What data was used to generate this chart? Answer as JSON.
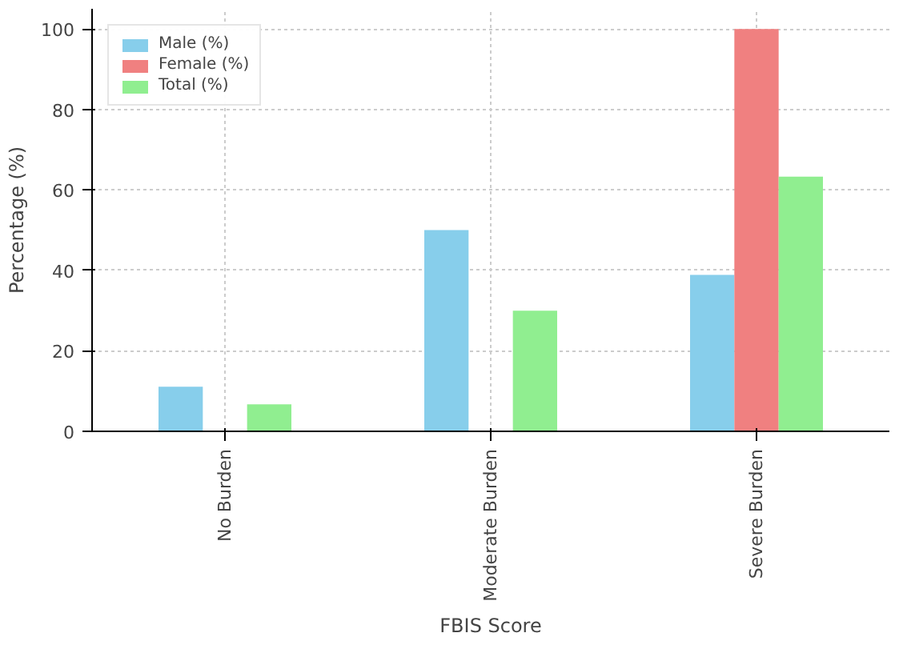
{
  "chart_data": {
    "type": "bar",
    "xlabel": "FBIS Score",
    "ylabel": "Percentage (%)",
    "categories": [
      "No Burden",
      "Moderate Burden",
      "Severe Burden"
    ],
    "series": [
      {
        "name": "Male (%)",
        "color": "#87ceeb",
        "values": [
          11.1,
          50,
          38.9
        ]
      },
      {
        "name": "Female (%)",
        "color": "#f08080",
        "values": [
          0,
          0,
          100
        ]
      },
      {
        "name": "Total (%)",
        "color": "#90ee90",
        "values": [
          6.7,
          30,
          63.3
        ]
      }
    ],
    "ylim": [
      0,
      105
    ],
    "yticks": [
      0,
      20,
      40,
      60,
      80,
      100
    ],
    "grid": true,
    "legend": "top left"
  }
}
